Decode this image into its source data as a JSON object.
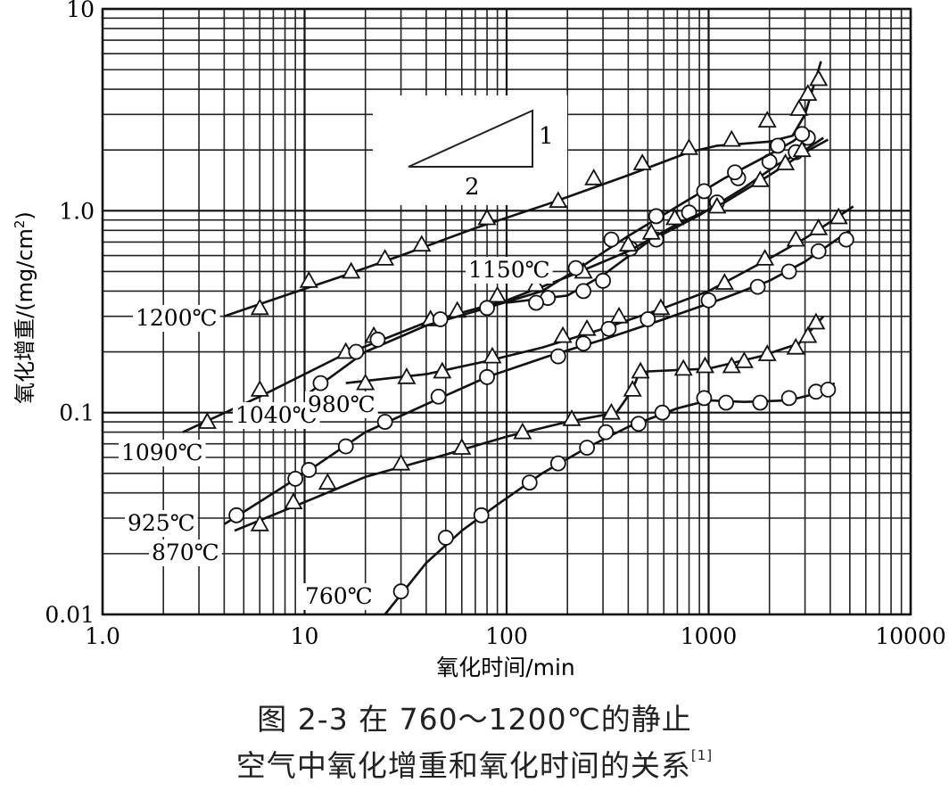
{
  "chart_data": {
    "type": "line",
    "x_scale": "log",
    "y_scale": "log",
    "xlim": [
      1,
      10000
    ],
    "ylim": [
      0.01,
      10
    ],
    "grid": true,
    "xlabel": "氧化时间/min",
    "ylabel_main": "氧化增重/(mg/cm",
    "ylabel_sup": "2",
    "ylabel_close": ")",
    "x_ticks": [
      {
        "value": 1,
        "label": "1.0"
      },
      {
        "value": 10,
        "label": "10"
      },
      {
        "value": 100,
        "label": "100"
      },
      {
        "value": 1000,
        "label": "1000"
      },
      {
        "value": 10000,
        "label": "10000"
      }
    ],
    "y_ticks": [
      {
        "value": 0.01,
        "label": "0.01"
      },
      {
        "value": 0.1,
        "label": "0.1"
      },
      {
        "value": 1,
        "label": "1.0"
      },
      {
        "value": 10,
        "label": "10"
      }
    ],
    "slope_triangle": {
      "rise_label": "1",
      "run_label": "2"
    },
    "series": [
      {
        "name": "1200℃",
        "marker": "triangle",
        "points": [
          [
            6,
            0.33
          ],
          [
            10.5,
            0.45
          ],
          [
            17,
            0.5
          ],
          [
            25,
            0.58
          ],
          [
            38,
            0.68
          ],
          [
            80,
            0.92
          ],
          [
            180,
            1.12
          ],
          [
            270,
            1.45
          ],
          [
            470,
            1.72
          ],
          [
            800,
            2.05
          ],
          [
            1300,
            2.25
          ],
          [
            1950,
            2.8
          ],
          [
            2800,
            3.2
          ],
          [
            3100,
            3.8
          ],
          [
            3500,
            4.5
          ]
        ],
        "line": [
          [
            4,
            0.3
          ],
          [
            8,
            0.38
          ],
          [
            15,
            0.47
          ],
          [
            30,
            0.6
          ],
          [
            70,
            0.82
          ],
          [
            160,
            1.08
          ],
          [
            400,
            1.5
          ],
          [
            800,
            1.95
          ],
          [
            1100,
            2.1
          ],
          [
            2000,
            2.2
          ],
          [
            2600,
            2.35
          ],
          [
            3000,
            3.0
          ],
          [
            3600,
            5.5
          ]
        ]
      },
      {
        "name": "1150℃",
        "marker": "circle",
        "points": [
          [
            160,
            0.37
          ],
          [
            240,
            0.4
          ],
          [
            300,
            0.45
          ],
          [
            410,
            0.65
          ],
          [
            550,
            0.72
          ],
          [
            800,
            0.98
          ],
          [
            1100,
            1.1
          ],
          [
            1400,
            1.45
          ],
          [
            2000,
            1.75
          ],
          [
            2700,
            1.95
          ],
          [
            3100,
            2.3
          ]
        ],
        "line": [
          [
            100,
            0.35
          ],
          [
            200,
            0.38
          ],
          [
            300,
            0.48
          ],
          [
            500,
            0.7
          ],
          [
            900,
            0.95
          ],
          [
            1500,
            1.3
          ],
          [
            2200,
            1.7
          ],
          [
            3000,
            2.0
          ],
          [
            3700,
            2.3
          ]
        ]
      },
      {
        "name": "1090℃",
        "marker": "triangle",
        "points": [
          [
            3.3,
            0.09
          ],
          [
            6,
            0.13
          ],
          [
            16,
            0.2
          ],
          [
            22,
            0.24
          ],
          [
            42,
            0.29
          ],
          [
            57,
            0.32
          ],
          [
            90,
            0.38
          ],
          [
            140,
            0.43
          ],
          [
            240,
            0.5
          ],
          [
            400,
            0.68
          ],
          [
            520,
            0.78
          ],
          [
            680,
            0.92
          ],
          [
            1100,
            1.05
          ],
          [
            1800,
            1.42
          ],
          [
            2400,
            1.72
          ],
          [
            2900,
            2.0
          ]
        ],
        "line": [
          [
            2.5,
            0.08
          ],
          [
            6,
            0.12
          ],
          [
            15,
            0.19
          ],
          [
            40,
            0.28
          ],
          [
            100,
            0.36
          ],
          [
            200,
            0.47
          ],
          [
            400,
            0.63
          ],
          [
            700,
            0.86
          ],
          [
            1200,
            1.1
          ],
          [
            2000,
            1.5
          ],
          [
            3000,
            1.95
          ],
          [
            3900,
            2.25
          ]
        ]
      },
      {
        "name": "1040℃",
        "marker": "circle",
        "points": [
          [
            12,
            0.14
          ],
          [
            18,
            0.2
          ],
          [
            23,
            0.23
          ],
          [
            47,
            0.29
          ],
          [
            80,
            0.33
          ],
          [
            140,
            0.35
          ],
          [
            220,
            0.52
          ],
          [
            330,
            0.72
          ],
          [
            550,
            0.94
          ],
          [
            950,
            1.25
          ],
          [
            1350,
            1.55
          ],
          [
            2200,
            2.1
          ],
          [
            2900,
            2.4
          ]
        ],
        "line": [
          [
            10.5,
            0.125
          ],
          [
            20,
            0.2
          ],
          [
            40,
            0.27
          ],
          [
            80,
            0.33
          ],
          [
            150,
            0.4
          ],
          [
            250,
            0.55
          ],
          [
            400,
            0.75
          ],
          [
            700,
            1.05
          ],
          [
            1200,
            1.45
          ],
          [
            2000,
            1.9
          ],
          [
            2600,
            2.2
          ],
          [
            3100,
            2.5
          ]
        ]
      },
      {
        "name": "980℃",
        "marker": "triangle",
        "points": [
          [
            20,
            0.14
          ],
          [
            32,
            0.15
          ],
          [
            48,
            0.16
          ],
          [
            85,
            0.19
          ],
          [
            190,
            0.24
          ],
          [
            250,
            0.26
          ],
          [
            360,
            0.3
          ],
          [
            580,
            0.33
          ],
          [
            1200,
            0.44
          ],
          [
            1900,
            0.58
          ],
          [
            2700,
            0.72
          ],
          [
            3500,
            0.82
          ],
          [
            4400,
            0.93
          ]
        ],
        "line": [
          [
            16,
            0.14
          ],
          [
            40,
            0.155
          ],
          [
            80,
            0.18
          ],
          [
            150,
            0.21
          ],
          [
            300,
            0.26
          ],
          [
            600,
            0.33
          ],
          [
            1000,
            0.4
          ],
          [
            2000,
            0.58
          ],
          [
            3000,
            0.73
          ],
          [
            4000,
            0.88
          ],
          [
            5200,
            1.05
          ]
        ]
      },
      {
        "name": "925℃",
        "marker": "circle",
        "points": [
          [
            4.6,
            0.031
          ],
          [
            9,
            0.047
          ],
          [
            10.5,
            0.052
          ],
          [
            16,
            0.068
          ],
          [
            25,
            0.09
          ],
          [
            46,
            0.12
          ],
          [
            80,
            0.15
          ],
          [
            180,
            0.19
          ],
          [
            240,
            0.22
          ],
          [
            320,
            0.26
          ],
          [
            500,
            0.29
          ],
          [
            1000,
            0.36
          ],
          [
            1750,
            0.42
          ],
          [
            2500,
            0.5
          ],
          [
            3500,
            0.63
          ],
          [
            4800,
            0.72
          ]
        ],
        "line": [
          [
            4,
            0.028
          ],
          [
            10,
            0.05
          ],
          [
            20,
            0.08
          ],
          [
            40,
            0.11
          ],
          [
            80,
            0.15
          ],
          [
            160,
            0.19
          ],
          [
            300,
            0.23
          ],
          [
            600,
            0.29
          ],
          [
            1200,
            0.37
          ],
          [
            2000,
            0.45
          ],
          [
            3000,
            0.56
          ],
          [
            5000,
            0.8
          ]
        ]
      },
      {
        "name": "870℃",
        "marker": "triangle",
        "points": [
          [
            6,
            0.028
          ],
          [
            8.8,
            0.036
          ],
          [
            13,
            0.045
          ],
          [
            30,
            0.056
          ],
          [
            60,
            0.067
          ],
          [
            120,
            0.08
          ],
          [
            210,
            0.093
          ],
          [
            330,
            0.1
          ],
          [
            420,
            0.13
          ],
          [
            460,
            0.16
          ],
          [
            750,
            0.165
          ],
          [
            960,
            0.17
          ],
          [
            1300,
            0.17
          ],
          [
            1500,
            0.18
          ],
          [
            1950,
            0.195
          ],
          [
            2700,
            0.21
          ],
          [
            3100,
            0.24
          ],
          [
            3400,
            0.28
          ]
        ],
        "line": [
          [
            4.5,
            0.026
          ],
          [
            10,
            0.036
          ],
          [
            20,
            0.048
          ],
          [
            50,
            0.062
          ],
          [
            100,
            0.076
          ],
          [
            200,
            0.09
          ],
          [
            350,
            0.1
          ],
          [
            420,
            0.13
          ],
          [
            450,
            0.155
          ],
          [
            500,
            0.16
          ],
          [
            1000,
            0.165
          ],
          [
            1800,
            0.19
          ],
          [
            2800,
            0.22
          ],
          [
            3700,
            0.3
          ]
        ]
      },
      {
        "name": "760℃",
        "marker": "circle",
        "points": [
          [
            30,
            0.013
          ],
          [
            50,
            0.024
          ],
          [
            75,
            0.031
          ],
          [
            130,
            0.045
          ],
          [
            180,
            0.056
          ],
          [
            250,
            0.067
          ],
          [
            310,
            0.08
          ],
          [
            450,
            0.088
          ],
          [
            590,
            0.1
          ],
          [
            950,
            0.118
          ],
          [
            1220,
            0.112
          ],
          [
            1800,
            0.112
          ],
          [
            2500,
            0.118
          ],
          [
            3400,
            0.127
          ],
          [
            3900,
            0.13
          ]
        ],
        "line": [
          [
            25,
            0.01
          ],
          [
            40,
            0.018
          ],
          [
            60,
            0.026
          ],
          [
            90,
            0.035
          ],
          [
            150,
            0.05
          ],
          [
            250,
            0.067
          ],
          [
            400,
            0.085
          ],
          [
            700,
            0.105
          ],
          [
            1000,
            0.115
          ],
          [
            1500,
            0.113
          ],
          [
            2500,
            0.115
          ],
          [
            3500,
            0.125
          ],
          [
            4200,
            0.14
          ]
        ]
      }
    ]
  },
  "caption": {
    "line1": "图 2-3 在 760～1200℃的静止",
    "line2": "空气中氧化增重和氧化时间的关系",
    "ref": "[1]"
  }
}
